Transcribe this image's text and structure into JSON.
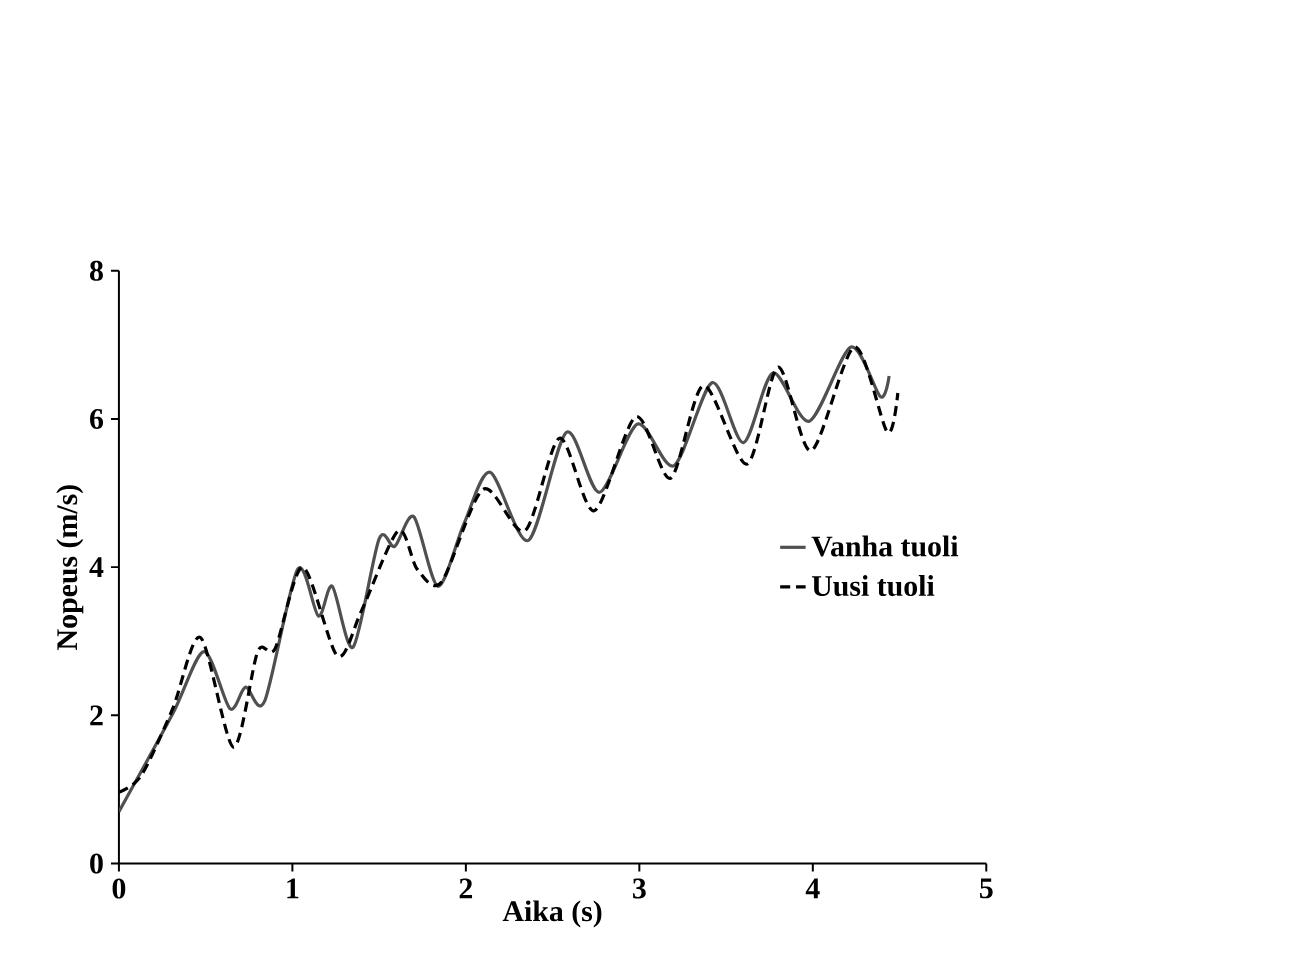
{
  "chart_data": {
    "type": "line",
    "xlabel": "Aika (s)",
    "ylabel": "Nopeus (m/s)",
    "xlim": [
      0,
      5
    ],
    "ylim": [
      0,
      8
    ],
    "xticks": [
      0,
      1,
      2,
      3,
      4,
      5
    ],
    "yticks": [
      0,
      2,
      4,
      6,
      8
    ],
    "grid": false,
    "legend": "right",
    "marker": "none",
    "series": [
      {
        "name": "Vanha tuoli",
        "color": "#505050",
        "line_style": "solid",
        "x": [
          0,
          0.31,
          0.49,
          0.64,
          0.73,
          0.84,
          1.03,
          1.15,
          1.23,
          1.35,
          1.5,
          1.59,
          1.7,
          1.84,
          1.99,
          2.14,
          2.36,
          2.58,
          2.77,
          2.99,
          3.2,
          3.42,
          3.6,
          3.77,
          3.98,
          4.22,
          4.39,
          4.44
        ],
        "values": [
          0.7,
          2.02,
          2.86,
          2.09,
          2.38,
          2.19,
          3.97,
          3.34,
          3.74,
          2.92,
          4.38,
          4.28,
          4.68,
          3.74,
          4.59,
          5.28,
          4.36,
          5.82,
          5.01,
          5.93,
          5.37,
          6.49,
          5.68,
          6.62,
          5.97,
          6.97,
          6.3,
          6.58
        ]
      },
      {
        "name": "Uusi tuoli",
        "color": "#000000",
        "line_style": "dashed",
        "x": [
          0,
          0.13,
          0.31,
          0.47,
          0.66,
          0.8,
          0.9,
          1.06,
          1.26,
          1.4,
          1.61,
          1.72,
          1.86,
          2.1,
          2.34,
          2.54,
          2.74,
          2.98,
          3.18,
          3.37,
          3.62,
          3.8,
          3.99,
          4.24,
          4.43,
          4.49
        ],
        "values": [
          0.96,
          1.19,
          2.09,
          3.05,
          1.57,
          2.86,
          2.9,
          4.0,
          2.8,
          3.42,
          4.49,
          3.97,
          3.8,
          5.05,
          4.49,
          5.74,
          4.76,
          6.03,
          5.2,
          6.45,
          5.39,
          6.7,
          5.57,
          6.97,
          5.82,
          6.35
        ]
      }
    ]
  }
}
